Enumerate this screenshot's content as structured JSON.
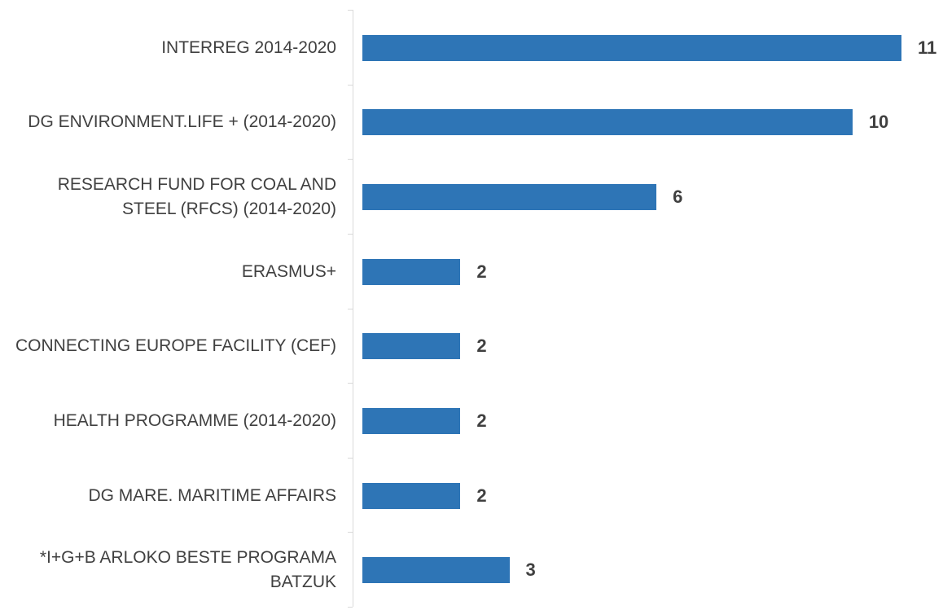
{
  "chart_data": {
    "type": "bar",
    "orientation": "horizontal",
    "categories": [
      "INTERREG 2014-2020",
      "DG ENVIRONMENT.LIFE + (2014-2020)",
      "RESEARCH FUND FOR COAL AND STEEL (RFCS) (2014-2020)",
      "ERASMUS+",
      "CONNECTING EUROPE FACILITY (CEF)",
      "HEALTH PROGRAMME (2014-2020)",
      "DG MARE. MARITIME AFFAIRS",
      "*I+G+B ARLOKO BESTE PROGRAMA BATZUK"
    ],
    "values": [
      11,
      10,
      6,
      2,
      2,
      2,
      2,
      3
    ],
    "color": "#2e75b6"
  }
}
